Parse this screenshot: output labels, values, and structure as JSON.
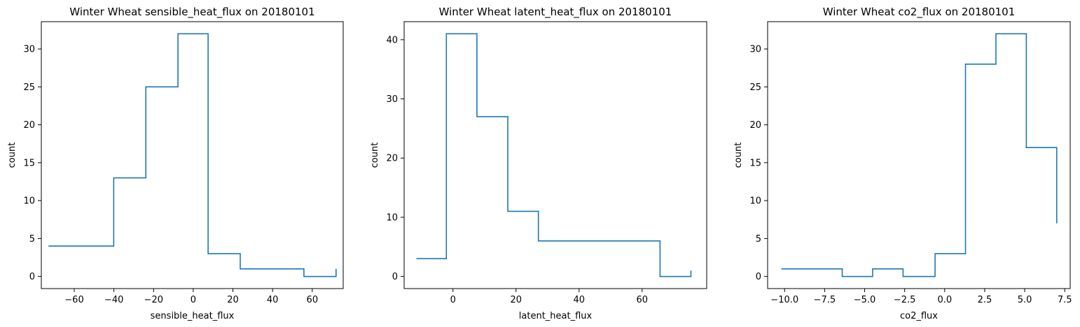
{
  "chart_data": [
    {
      "type": "histogram-step",
      "title": "Winter Wheat sensible_heat_flux on 20180101",
      "xlabel": "sensible_heat_flux",
      "ylabel": "count",
      "xlim": [
        -76.6,
        75.6
      ],
      "ylim": [
        -1.6,
        33.6
      ],
      "xticks": [
        -60,
        -40,
        -20,
        0,
        20,
        40,
        60
      ],
      "xtick_labels": [
        "−60",
        "−40",
        "−20",
        "0",
        "20",
        "40",
        "60"
      ],
      "yticks": [
        0,
        5,
        10,
        15,
        20,
        25,
        30
      ],
      "ytick_labels": [
        "0",
        "5",
        "10",
        "15",
        "20",
        "25",
        "30"
      ],
      "x": [
        -73.0,
        -40.1,
        -23.9,
        -7.7,
        7.5,
        23.7,
        55.8,
        72.0
      ],
      "values": [
        4,
        13,
        25,
        32,
        3,
        1,
        0,
        1
      ]
    },
    {
      "type": "histogram-step",
      "title": "Winter Wheat latent_heat_flux on 20180101",
      "xlabel": "latent_heat_flux",
      "ylabel": "count",
      "xlim": [
        -15.5,
        80.5
      ],
      "ylim": [
        -2.05,
        43.05
      ],
      "xticks": [
        0,
        20,
        40,
        60
      ],
      "xtick_labels": [
        "0",
        "20",
        "40",
        "60"
      ],
      "yticks": [
        0,
        10,
        20,
        30,
        40
      ],
      "ytick_labels": [
        "0",
        "10",
        "20",
        "30",
        "40"
      ],
      "x": [
        -11.6,
        -2.1,
        7.6,
        17.4,
        27.1,
        65.7,
        75.5
      ],
      "values": [
        3,
        41,
        27,
        11,
        6,
        0,
        1
      ]
    },
    {
      "type": "histogram-step",
      "title": "Winter Wheat co2_flux on 20180101",
      "xlabel": "co2_flux",
      "ylabel": "count",
      "xlim": [
        -11.06,
        7.84
      ],
      "ylim": [
        -1.6,
        33.6
      ],
      "xticks": [
        -10.0,
        -7.5,
        -5.0,
        -2.5,
        0.0,
        2.5,
        5.0,
        7.5
      ],
      "xtick_labels": [
        "−10.0",
        "−7.5",
        "−5.0",
        "−2.5",
        "0.0",
        "2.5",
        "5.0",
        "7.5"
      ],
      "yticks": [
        0,
        5,
        10,
        15,
        20,
        25,
        30
      ],
      "ytick_labels": [
        "0",
        "5",
        "10",
        "15",
        "20",
        "25",
        "30"
      ],
      "x": [
        -10.2,
        -6.4,
        -4.5,
        -2.6,
        -0.6,
        1.3,
        3.2,
        5.1,
        7.0
      ],
      "values": [
        1,
        0,
        1,
        0,
        3,
        28,
        32,
        17,
        7
      ]
    }
  ]
}
